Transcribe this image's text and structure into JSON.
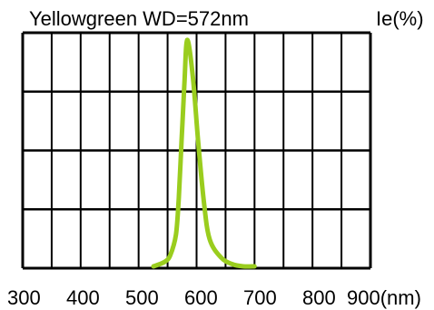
{
  "chart_data": {
    "type": "line",
    "title": "Yellowgreen WD=572nm",
    "ylabel": "Ie(%)",
    "xlabel": "",
    "x_ticks": [
      "300",
      "400",
      "500",
      "600",
      "700",
      "800",
      "900(nm)"
    ],
    "xlim": [
      300,
      900
    ],
    "ylim": [
      0,
      100
    ],
    "grid": true,
    "colors": {
      "curve": "#9acd1e",
      "grid": "#000000"
    },
    "series": [
      {
        "x": [
          520,
          540,
          550,
          560,
          565,
          570,
          575,
          580,
          590,
          600,
          610,
          620,
          640,
          660,
          680,
          700
        ],
        "y": [
          0,
          2,
          5,
          14,
          30,
          55,
          80,
          100,
          84,
          54,
          28,
          12,
          4,
          1,
          0,
          0
        ]
      }
    ]
  }
}
